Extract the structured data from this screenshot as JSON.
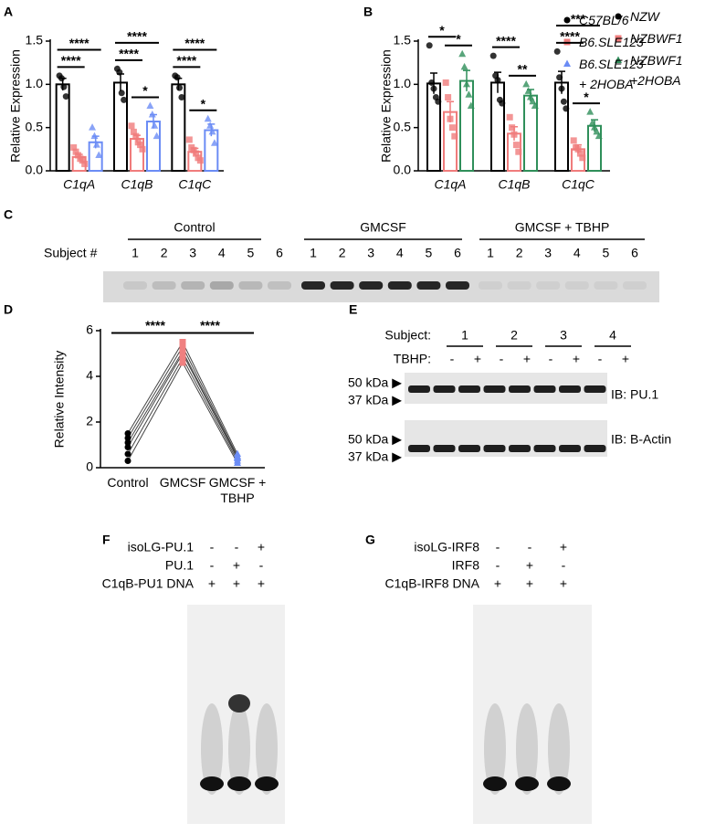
{
  "chart_data": [
    {
      "type": "bar",
      "panel": "A",
      "ylabel": "Relative Expression",
      "categories": [
        "C1qA",
        "C1qB",
        "C1qC"
      ],
      "series": [
        {
          "name": "C57BL/6",
          "color": "#000000",
          "marker": "circle",
          "values": [
            1.0,
            1.02,
            1.0
          ],
          "errors": [
            0.07,
            0.1,
            0.07
          ],
          "points": [
            [
              1.1,
              1.07,
              0.97,
              0.86
            ],
            [
              1.18,
              1.14,
              0.9,
              0.82
            ],
            [
              1.1,
              1.08,
              0.96,
              0.85
            ]
          ]
        },
        {
          "name": "B6.SLE123",
          "color": "#f07c7c",
          "marker": "square",
          "values": [
            0.16,
            0.37,
            0.22
          ],
          "errors": [
            0.03,
            0.04,
            0.04
          ],
          "points": [
            [
              0.27,
              0.22,
              0.18,
              0.14,
              0.12,
              0.08
            ],
            [
              0.52,
              0.45,
              0.4,
              0.33,
              0.3,
              0.25
            ],
            [
              0.36,
              0.27,
              0.24,
              0.2,
              0.15,
              0.12
            ]
          ]
        },
        {
          "name": "B6.SLE123 + 2HOBA",
          "color": "#6b8cf5",
          "marker": "triangle",
          "values": [
            0.33,
            0.57,
            0.47
          ],
          "errors": [
            0.07,
            0.08,
            0.07
          ],
          "points": [
            [
              0.5,
              0.4,
              0.3,
              0.18
            ],
            [
              0.75,
              0.65,
              0.52,
              0.4
            ],
            [
              0.6,
              0.52,
              0.45,
              0.32
            ]
          ]
        }
      ],
      "ylim": [
        0,
        1.5
      ],
      "yticks": [
        {
          "value": 0,
          "label": "0.0"
        },
        0.5,
        {
          "value": 1,
          "label": "1.0"
        },
        1.5
      ],
      "comparisons": [
        {
          "label": "****",
          "category": 0,
          "series": [
            0,
            1
          ]
        },
        {
          "label": "****",
          "category": 0,
          "series": [
            0,
            2
          ]
        },
        {
          "label": "****",
          "category": 1,
          "series": [
            0,
            1
          ]
        },
        {
          "label": "****",
          "category": 1,
          "series": [
            0,
            2
          ]
        },
        {
          "label": "*",
          "category": 1,
          "series": [
            1,
            2
          ]
        },
        {
          "label": "****",
          "category": 2,
          "series": [
            0,
            1
          ]
        },
        {
          "label": "****",
          "category": 2,
          "series": [
            0,
            2
          ]
        },
        {
          "label": "*",
          "category": 2,
          "series": [
            1,
            2
          ]
        }
      ]
    },
    {
      "type": "bar",
      "panel": "B",
      "ylabel": "Relative Expression",
      "categories": [
        "C1qA",
        "C1qB",
        "C1qC"
      ],
      "series": [
        {
          "name": "NZW",
          "color": "#000000",
          "marker": "circle",
          "values": [
            1.01,
            1.02,
            1.02
          ],
          "errors": [
            0.12,
            0.12,
            0.13
          ],
          "points": [
            [
              1.45,
              1.02,
              0.95,
              0.85,
              0.8
            ],
            [
              1.33,
              1.1,
              1.05,
              0.82,
              0.78
            ],
            [
              1.38,
              1.08,
              0.95,
              0.8,
              0.72
            ]
          ]
        },
        {
          "name": "NZBWF1",
          "color": "#f07c7c",
          "marker": "square",
          "values": [
            0.68,
            0.43,
            0.25
          ],
          "errors": [
            0.12,
            0.08,
            0.05
          ],
          "points": [
            [
              1.02,
              0.85,
              0.6,
              0.5,
              0.4
            ],
            [
              0.62,
              0.5,
              0.42,
              0.3,
              0.22
            ],
            [
              0.35,
              0.27,
              0.25,
              0.2,
              0.15
            ]
          ]
        },
        {
          "name": "NZBWF1 +2HOBA",
          "color": "#2f8f5a",
          "marker": "triangle",
          "values": [
            1.04,
            0.87,
            0.52
          ],
          "errors": [
            0.12,
            0.07,
            0.07
          ],
          "points": [
            [
              1.35,
              1.2,
              1.0,
              0.88,
              0.75
            ],
            [
              1.0,
              0.92,
              0.85,
              0.8,
              0.75
            ],
            [
              0.68,
              0.55,
              0.5,
              0.45,
              0.4
            ]
          ]
        }
      ],
      "ylim": [
        0,
        1.5
      ],
      "yticks": [
        {
          "value": 0,
          "label": "0.0"
        },
        0.5,
        {
          "value": 1,
          "label": "1.0"
        },
        1.5
      ],
      "comparisons": [
        {
          "label": "*",
          "category": 0,
          "series": [
            0,
            1
          ]
        },
        {
          "label": "*",
          "category": 0,
          "series": [
            1,
            2
          ]
        },
        {
          "label": "****",
          "category": 1,
          "series": [
            0,
            1
          ]
        },
        {
          "label": "**",
          "category": 1,
          "series": [
            1,
            2
          ]
        },
        {
          "label": "****",
          "category": 2,
          "series": [
            0,
            1
          ]
        },
        {
          "label": "***",
          "category": 2,
          "series": [
            0,
            2
          ]
        },
        {
          "label": "*",
          "category": 2,
          "series": [
            1,
            2
          ]
        }
      ]
    },
    {
      "type": "line",
      "panel": "D",
      "ylabel": "Relative Intensity",
      "categories": [
        "Control",
        "GMCSF",
        "GMCSF + TBHP"
      ],
      "marker_colors": [
        "#000000",
        "#f08080",
        "#6b8cf5"
      ],
      "line_color": "#444444",
      "series": [
        {
          "values": [
            1.5,
            5.5,
            0.6
          ]
        },
        {
          "values": [
            1.3,
            5.3,
            0.5
          ]
        },
        {
          "values": [
            1.1,
            5.1,
            0.45
          ]
        },
        {
          "values": [
            0.9,
            5.0,
            0.4
          ]
        },
        {
          "values": [
            0.6,
            4.8,
            0.3
          ]
        },
        {
          "values": [
            0.3,
            4.6,
            0.2
          ]
        }
      ],
      "ylim": [
        0,
        6
      ],
      "yticks": [
        0,
        2,
        4,
        6
      ],
      "comparisons": [
        {
          "label": "****",
          "categories": [
            0,
            1
          ]
        },
        {
          "label": "****",
          "categories": [
            1,
            2
          ]
        }
      ]
    }
  ],
  "panels": {
    "C": {
      "letter": "C",
      "groups": [
        "Control",
        "GMCSF",
        "GMCSF + TBHP"
      ],
      "lane_label": "Subject #",
      "lanes": [
        [
          1,
          2,
          3,
          4,
          5,
          6
        ],
        [
          1,
          2,
          3,
          4,
          5,
          6
        ],
        [
          1,
          2,
          3,
          4,
          5,
          6
        ]
      ]
    },
    "E": {
      "letter": "E",
      "subject_label": "Subject:",
      "subjects": [
        1,
        2,
        3,
        4
      ],
      "tbhp_label": "TBHP:",
      "tbhp": [
        "-",
        "+",
        "-",
        "+",
        "-",
        "+",
        "-",
        "+"
      ],
      "blots": [
        {
          "markers": [
            "50 kDa ▶",
            "37 kDa ▶"
          ],
          "label": "IB: PU.1"
        },
        {
          "markers": [
            "50 kDa ▶",
            "37 kDa ▶"
          ],
          "label": "IB: B-Actin"
        }
      ]
    },
    "F": {
      "letter": "F",
      "rows": [
        {
          "label": "isoLG-PU.1",
          "signs": [
            "-",
            "-",
            "+"
          ]
        },
        {
          "label": "PU.1",
          "signs": [
            "-",
            "+",
            "-"
          ]
        },
        {
          "label": "C1qB-PU1 DNA",
          "signs": [
            "+",
            "+",
            "+"
          ]
        }
      ]
    },
    "G": {
      "letter": "G",
      "rows": [
        {
          "label": "isoLG-IRF8",
          "signs": [
            "-",
            "-",
            "+"
          ]
        },
        {
          "label": "IRF8",
          "signs": [
            "-",
            "+",
            "-"
          ]
        },
        {
          "label": "C1qB-IRF8 DNA",
          "signs": [
            "+",
            "+",
            "+"
          ]
        }
      ]
    }
  }
}
